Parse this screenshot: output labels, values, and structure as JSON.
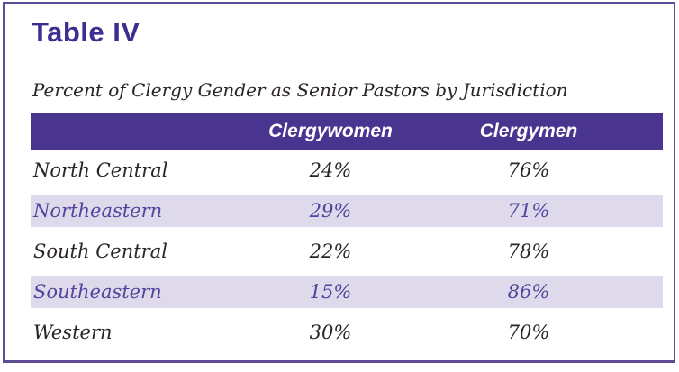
{
  "title": "Table IV",
  "subtitle": "Percent of Clergy Gender as Senior Pastors by Jurisdiction",
  "table": {
    "headers": {
      "label": "",
      "clergywomen": "Clergywomen",
      "clergymen": "Clergymen"
    },
    "rows": [
      {
        "label": "North Central",
        "clergywomen": "24%",
        "clergymen": "76%",
        "highlighted": false
      },
      {
        "label": "Northeastern",
        "clergywomen": "29%",
        "clergymen": "71%",
        "highlighted": true
      },
      {
        "label": "South Central",
        "clergywomen": "22%",
        "clergymen": "78%",
        "highlighted": false
      },
      {
        "label": "Southeastern",
        "clergywomen": "15%",
        "clergymen": "86%",
        "highlighted": true
      },
      {
        "label": "Western",
        "clergywomen": "30%",
        "clergymen": "70%",
        "highlighted": false
      }
    ]
  },
  "chart_data": {
    "type": "table",
    "title": "Table IV",
    "subtitle": "Percent of Clergy Gender as Senior Pastors by Jurisdiction",
    "categories": [
      "North Central",
      "Northeastern",
      "South Central",
      "Southeastern",
      "Western"
    ],
    "series": [
      {
        "name": "Clergywomen",
        "values": [
          24,
          29,
          22,
          15,
          30
        ]
      },
      {
        "name": "Clergymen",
        "values": [
          76,
          71,
          78,
          86,
          70
        ]
      }
    ],
    "units": "%"
  },
  "colors": {
    "header_bg": "#493490",
    "header_text": "#ffffff",
    "frame_border": "#5d4b96",
    "title_text": "#3c2d8e",
    "row_highlight_bg": "#dedaeb",
    "row_highlight_text": "#53439c",
    "body_text": "#2b2526"
  }
}
